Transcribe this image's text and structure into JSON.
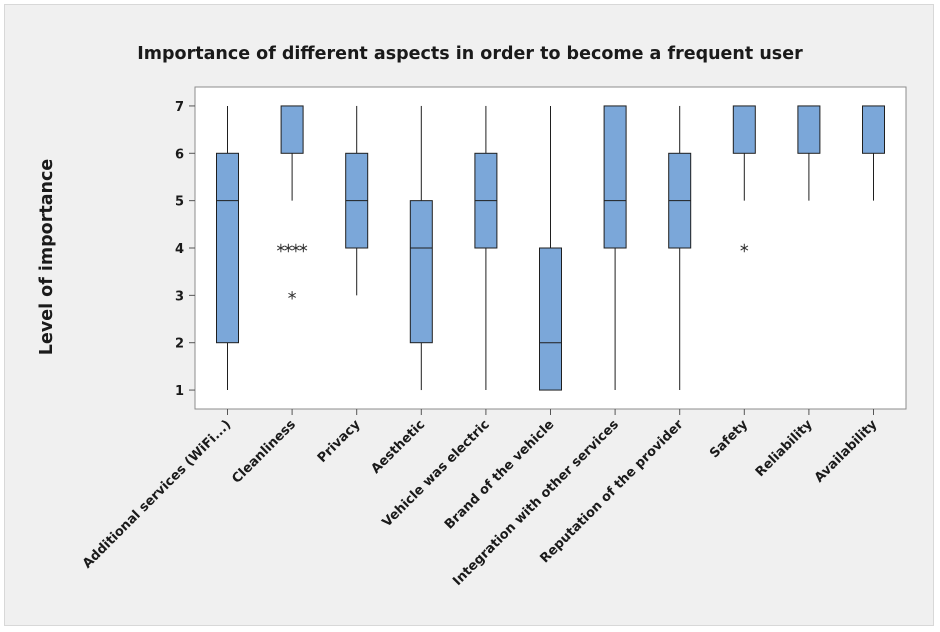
{
  "chart_data": {
    "type": "boxplot",
    "title": "Importance of different aspects in order to become a frequent user",
    "ylabel": "Level of importance",
    "xlabel": "",
    "ylim": [
      0.6,
      7.4
    ],
    "yticks": [
      1,
      2,
      3,
      4,
      5,
      6,
      7
    ],
    "grid": false,
    "box_color": "#7ba7d9",
    "box_edge_color": "#1f1f1f",
    "outlier_marker": "asterisk",
    "categories": [
      "Additional services (WiFi...)",
      "Cleanliness",
      "Privacy",
      "Aesthetic",
      "Vehicle was electric",
      "Brand of the vehicle",
      "Integration with other services",
      "Reputation of the provider",
      "Safety",
      "Reliability",
      "Availability"
    ],
    "boxes": [
      {
        "whisker_low": 1,
        "q1": 2,
        "median": 5,
        "q3": 6,
        "whisker_high": 7,
        "outliers": []
      },
      {
        "whisker_low": 5,
        "q1": 6,
        "median": 7,
        "q3": 7,
        "whisker_high": 7,
        "outliers": [
          4,
          4,
          4,
          4,
          3
        ]
      },
      {
        "whisker_low": 3,
        "q1": 4,
        "median": 5,
        "q3": 6,
        "whisker_high": 7,
        "outliers": []
      },
      {
        "whisker_low": 1,
        "q1": 2,
        "median": 4,
        "q3": 5,
        "whisker_high": 7,
        "outliers": []
      },
      {
        "whisker_low": 1,
        "q1": 4,
        "median": 5,
        "q3": 6,
        "whisker_high": 7,
        "outliers": []
      },
      {
        "whisker_low": 1,
        "q1": 1,
        "median": 2,
        "q3": 4,
        "whisker_high": 7,
        "outliers": []
      },
      {
        "whisker_low": 1,
        "q1": 4,
        "median": 5,
        "q3": 7,
        "whisker_high": 7,
        "outliers": []
      },
      {
        "whisker_low": 1,
        "q1": 4,
        "median": 5,
        "q3": 6,
        "whisker_high": 7,
        "outliers": []
      },
      {
        "whisker_low": 5,
        "q1": 6,
        "median": 7,
        "q3": 7,
        "whisker_high": 7,
        "outliers": [
          4
        ]
      },
      {
        "whisker_low": 5,
        "q1": 6,
        "median": 7,
        "q3": 7,
        "whisker_high": 7,
        "outliers": []
      },
      {
        "whisker_low": 5,
        "q1": 6,
        "median": 7,
        "q3": 7,
        "whisker_high": 7,
        "outliers": []
      }
    ]
  }
}
